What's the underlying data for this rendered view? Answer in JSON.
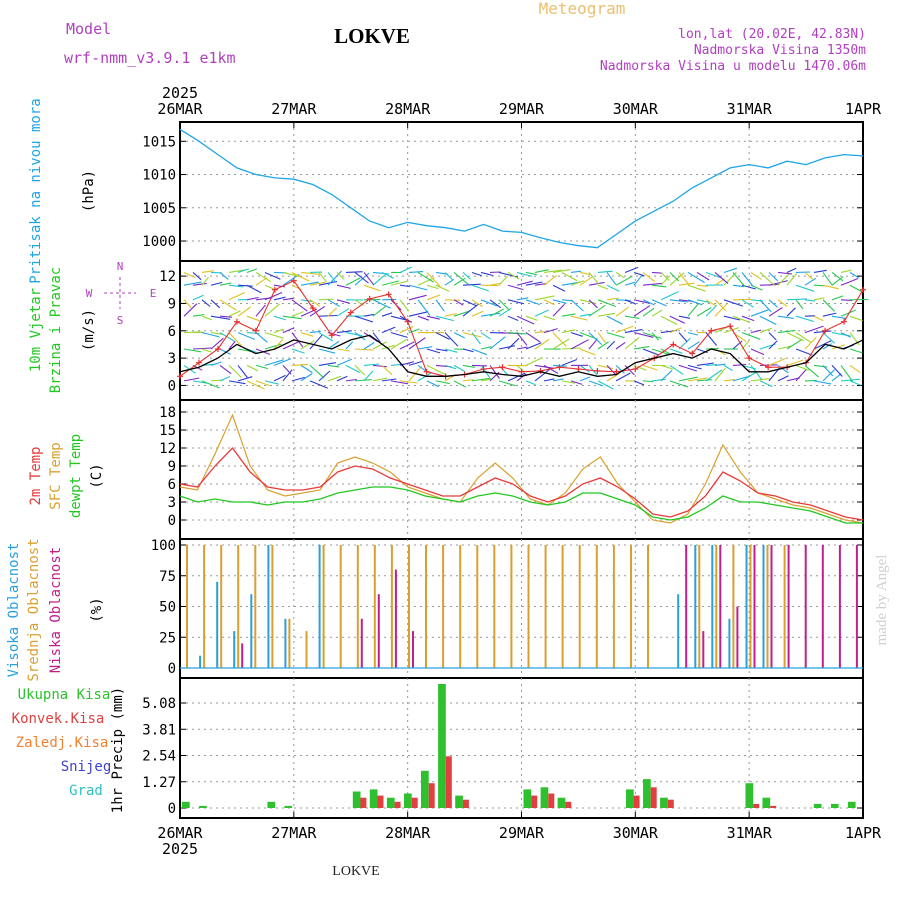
{
  "header": {
    "model_label": "Model",
    "model_value": "wrf-nmm_v3.9.1 e1km",
    "station": "LOKVE",
    "product": "Meteogram",
    "lonlat": "lon,lat (20.02E, 42.83N)",
    "elevation": "Nadmorska Visina 1350m",
    "model_elevation": "Nadmorska Visina u modelu 1470.06m",
    "footer_station": "LOKVE",
    "watermark": "made by Angel"
  },
  "time_axis": {
    "year": "2025",
    "ticks": [
      "26MAR",
      "27MAR",
      "28MAR",
      "29MAR",
      "30MAR",
      "31MAR",
      "1APR"
    ],
    "hours_total": 144
  },
  "colors": {
    "pressure": "#1ea5e6",
    "wind_speed": "#000000",
    "wind_gust": "#e63030",
    "temp2m": "#e83a3a",
    "sfc_temp": "#d9a030",
    "dewpoint": "#22c822",
    "cloud_high": "#2aa0dc",
    "cloud_mid": "#d9a030",
    "cloud_low": "#c0208a",
    "precip_total": "#2ec02e",
    "precip_conv": "#e04040",
    "precip_frozen": "#f08030",
    "snow": "#4040d0",
    "hail": "#30c0c0"
  },
  "chart_data": [
    {
      "type": "line",
      "id": "pressure",
      "ylabel": [
        "Pritisak na nivou mora",
        "(hPa)"
      ],
      "yticks": [
        1000,
        1005,
        1010,
        1015
      ],
      "ylim": [
        998.5,
        1017
      ],
      "grid": true,
      "series": [
        {
          "values": [
            1016.8,
            1015,
            1013,
            1011,
            1010,
            1009.5,
            1009.3,
            1008.5,
            1007,
            1005,
            1003,
            1002,
            1002.8,
            1002.3,
            1002,
            1001.5,
            1002.5,
            1001.5,
            1001.3,
            1000.5,
            999.8,
            999.3,
            999,
            1001,
            1003,
            1004.5,
            1006,
            1008,
            1009.5,
            1011,
            1011.5,
            1011,
            1012,
            1011.5,
            1012.5,
            1013,
            1012.8
          ]
        }
      ]
    },
    {
      "type": "line",
      "id": "wind",
      "ylabel": [
        "10m Vjetar",
        "Brzina i Pravac",
        "(m/s)"
      ],
      "direction_legend": [
        "N",
        "W",
        "E",
        "S"
      ],
      "yticks": [
        0,
        3,
        6,
        9,
        12
      ],
      "ylim": [
        -0.5,
        13
      ],
      "grid": true,
      "series": [
        {
          "values": [
            1.5,
            2,
            3,
            4.5,
            3.5,
            4,
            5,
            4.5,
            4,
            5,
            5.5,
            4,
            1.5,
            1,
            1,
            1.2,
            1.5,
            1.2,
            1,
            1.5,
            1,
            1.5,
            1,
            1.2,
            2.5,
            3,
            3.5,
            3,
            4,
            3.5,
            1.5,
            1.5,
            2,
            2.5,
            4.5,
            4,
            5
          ]
        },
        {
          "values": [
            1,
            2.5,
            4,
            7,
            6,
            10.5,
            11.5,
            8.5,
            5.5,
            8,
            9.5,
            10,
            7,
            1.5,
            1,
            1.2,
            1.8,
            2,
            1.5,
            1.6,
            2,
            1.8,
            1.6,
            1.5,
            1.8,
            3,
            4.5,
            3.5,
            6,
            6.5,
            3,
            2,
            2,
            2.5,
            6,
            7,
            10.5
          ]
        }
      ]
    },
    {
      "type": "line",
      "id": "temperature",
      "ylabel": [
        "2m Temp",
        "SFC Temp",
        "dewpt Temp",
        "(C)"
      ],
      "yticks": [
        0,
        3,
        6,
        9,
        12,
        15,
        18
      ],
      "ylim": [
        -1.5,
        19
      ],
      "grid": true,
      "series": [
        {
          "name": "2m Temp",
          "values": [
            6,
            5.5,
            9,
            12,
            8,
            5.5,
            5,
            5,
            5.5,
            8,
            9,
            8.5,
            7,
            6,
            5,
            4,
            4,
            5.5,
            7,
            6,
            4,
            3,
            4,
            6,
            7,
            5.5,
            3.5,
            1,
            0.5,
            1.5,
            4,
            8,
            6.5,
            4.5,
            4,
            3,
            2.5,
            1.5,
            0.5,
            0
          ]
        },
        {
          "name": "SFC Temp",
          "values": [
            5.5,
            5,
            11,
            17.5,
            9,
            5,
            4,
            4.5,
            5,
            9.5,
            10.5,
            9.5,
            8,
            5.5,
            4.5,
            3.5,
            3,
            7,
            9.5,
            7,
            3.5,
            2.5,
            4.5,
            8.5,
            10.5,
            6,
            3,
            0,
            -0.5,
            1,
            6,
            12.5,
            8,
            4.5,
            3.5,
            2.5,
            2,
            1,
            0,
            -0.5
          ]
        },
        {
          "name": "dewpt Temp",
          "values": [
            4,
            3,
            3.5,
            3,
            3,
            2.5,
            3,
            3,
            3.5,
            4.5,
            5,
            5.5,
            5.5,
            5,
            4,
            3.5,
            3,
            4,
            4.5,
            4,
            3,
            2.5,
            3,
            4.5,
            4.5,
            3.5,
            2.5,
            0.5,
            0,
            0.5,
            2,
            4,
            3,
            3,
            2.5,
            2,
            1.5,
            0.5,
            -0.5,
            -0.5
          ]
        }
      ]
    },
    {
      "type": "bar",
      "id": "clouds",
      "ylabel": [
        "Visoka Oblacnost",
        "Srednja Oblacnost",
        "Niska Oblacnost",
        "(%)"
      ],
      "yticks": [
        0,
        25,
        50,
        75,
        100
      ],
      "ylim": [
        0,
        100
      ],
      "grid": true,
      "series": [
        {
          "name": "Visoka Oblacnost",
          "values": [
            0,
            10,
            70,
            30,
            60,
            100,
            40,
            0,
            100,
            0,
            0,
            0,
            0,
            0,
            0,
            0,
            0,
            0,
            0,
            0,
            0,
            0,
            0,
            0,
            0,
            0,
            0,
            0,
            0,
            60,
            100,
            100,
            40,
            100,
            100,
            0,
            0,
            0,
            0,
            0
          ]
        },
        {
          "name": "Srednja Oblacnost",
          "values": [
            100,
            100,
            100,
            100,
            100,
            100,
            40,
            30,
            100,
            100,
            100,
            100,
            100,
            100,
            100,
            100,
            100,
            100,
            100,
            100,
            100,
            100,
            100,
            100,
            100,
            100,
            100,
            100,
            0,
            0,
            100,
            100,
            100,
            100,
            100,
            100,
            0,
            0,
            0,
            0
          ]
        },
        {
          "name": "Niska Oblacnost",
          "values": [
            0,
            0,
            0,
            20,
            0,
            0,
            0,
            0,
            0,
            0,
            40,
            60,
            80,
            30,
            0,
            0,
            0,
            0,
            0,
            0,
            0,
            0,
            0,
            0,
            0,
            0,
            0,
            0,
            0,
            100,
            30,
            100,
            50,
            100,
            100,
            100,
            100,
            100,
            100,
            100
          ]
        }
      ]
    },
    {
      "type": "bar",
      "id": "precip",
      "ylabel": [
        "1hr Precip (mm)"
      ],
      "legend": [
        "Ukupna Kisa",
        "Konvek.Kisa",
        "Zaledj.Kisa",
        "Snijeg",
        "Grad"
      ],
      "yticks": [
        0,
        1.27,
        2.54,
        3.81,
        5.08
      ],
      "ylim": [
        0,
        6
      ],
      "grid": true,
      "series": [
        {
          "name": "Ukupna Kisa",
          "values": [
            0.3,
            0.1,
            0,
            0,
            0,
            0.3,
            0.1,
            0,
            0,
            0,
            0.8,
            0.9,
            0.5,
            0.7,
            1.8,
            6,
            0.6,
            0,
            0,
            0,
            0.9,
            1,
            0.5,
            0,
            0,
            0,
            0.9,
            1.4,
            0.5,
            0,
            0,
            0,
            0,
            1.2,
            0.5,
            0,
            0,
            0.2,
            0.2,
            0.3
          ]
        },
        {
          "name": "Konvek.Kisa",
          "values": [
            0,
            0,
            0,
            0,
            0,
            0,
            0,
            0,
            0,
            0,
            0.5,
            0.6,
            0.3,
            0.5,
            1.2,
            2.5,
            0.4,
            0,
            0,
            0,
            0.6,
            0.7,
            0.3,
            0,
            0,
            0,
            0.6,
            1,
            0.4,
            0,
            0,
            0,
            0,
            0.2,
            0.1,
            0,
            0,
            0,
            0,
            0
          ]
        }
      ]
    }
  ]
}
